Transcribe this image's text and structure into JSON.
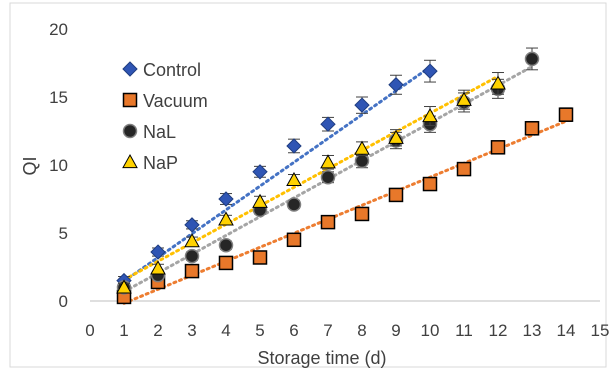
{
  "chart_data": {
    "type": "scatter",
    "title": "",
    "xlabel": "Storage time (d)",
    "ylabel": "QI",
    "xlim": [
      0,
      15
    ],
    "ylim": [
      0,
      20
    ],
    "xticks": [
      "0",
      "1",
      "2",
      "3",
      "4",
      "5",
      "6",
      "7",
      "8",
      "9",
      "10",
      "11",
      "12",
      "13",
      "14",
      "15"
    ],
    "yticks": [
      "0",
      "5",
      "10",
      "15",
      "20"
    ],
    "grid": false,
    "legend_position": "top-left",
    "series": [
      {
        "name": "Control",
        "marker": "diamond",
        "color": "#2f55b4",
        "trend_color": "#4472c4",
        "x": [
          1,
          2,
          3,
          4,
          5,
          6,
          7,
          8,
          9,
          10
        ],
        "y": [
          1.5,
          3.6,
          5.6,
          7.5,
          9.5,
          11.4,
          13.0,
          14.4,
          15.9,
          16.9
        ],
        "err": [
          0.3,
          0.3,
          0.3,
          0.4,
          0.4,
          0.5,
          0.5,
          0.6,
          0.7,
          0.8
        ],
        "trend": [
          -0.3,
          1.75
        ]
      },
      {
        "name": "Vacuum",
        "marker": "square",
        "color": "#e8782a",
        "trend_color": "#ed7d31",
        "x": [
          1,
          2,
          3,
          4,
          5,
          6,
          7,
          8,
          9,
          10,
          11,
          12,
          13,
          14
        ],
        "y": [
          0.3,
          1.4,
          2.2,
          2.8,
          3.2,
          4.5,
          5.8,
          6.4,
          7.8,
          8.6,
          9.7,
          11.3,
          12.7,
          13.7
        ],
        "err": [
          0.2,
          0.2,
          0.2,
          0.2,
          0.2,
          0.2,
          0.2,
          0.3,
          0.3,
          0.3,
          0.3,
          0.4,
          0.5,
          0.5
        ],
        "trend": [
          -1.2,
          1.03
        ]
      },
      {
        "name": "NaL",
        "marker": "circle",
        "color": "#262626",
        "trend_color": "#a5a5a5",
        "x": [
          1,
          2,
          3,
          4,
          5,
          6,
          7,
          8,
          9,
          10,
          11,
          12,
          13
        ],
        "y": [
          1.0,
          1.9,
          3.3,
          4.1,
          6.7,
          7.1,
          9.1,
          10.3,
          11.8,
          13.0,
          14.6,
          15.6,
          17.8
        ],
        "err": [
          0.3,
          0.3,
          0.3,
          0.3,
          0.3,
          0.3,
          0.4,
          0.5,
          0.6,
          0.6,
          0.7,
          0.7,
          0.8
        ],
        "trend": [
          -0.7,
          1.38
        ]
      },
      {
        "name": "NaP",
        "marker": "triangle",
        "color": "#ffd200",
        "trend_color": "#ffc000",
        "x": [
          1,
          2,
          3,
          4,
          5,
          6,
          7,
          8,
          9,
          10,
          11,
          12
        ],
        "y": [
          1.0,
          2.4,
          4.4,
          6.0,
          7.3,
          8.9,
          10.2,
          11.2,
          12.0,
          13.6,
          14.8,
          16.0
        ],
        "err": [
          0.3,
          0.3,
          0.3,
          0.3,
          0.4,
          0.4,
          0.5,
          0.5,
          0.6,
          0.7,
          0.7,
          0.8
        ],
        "trend": [
          0.2,
          1.36
        ]
      }
    ]
  }
}
